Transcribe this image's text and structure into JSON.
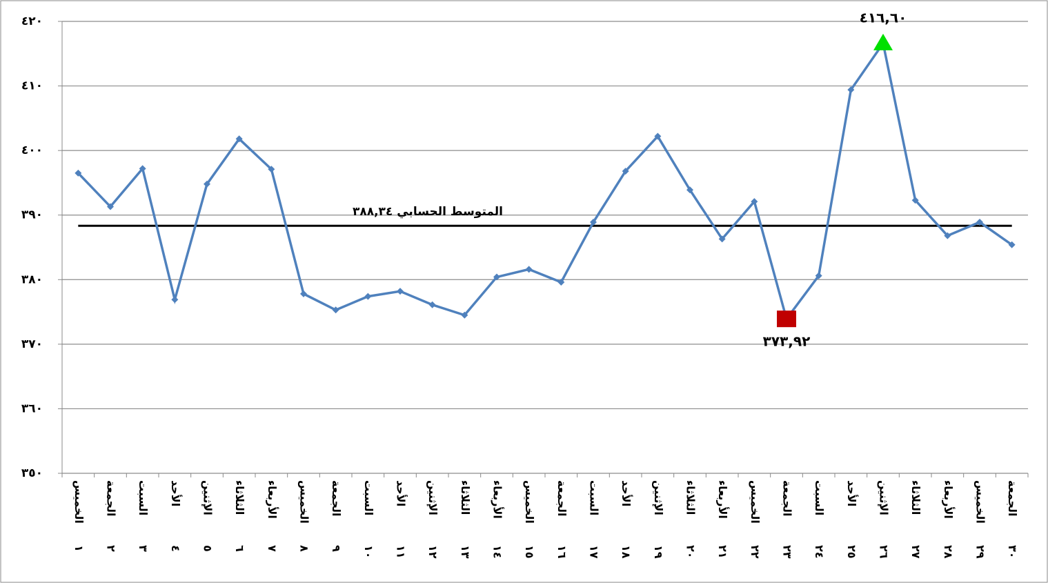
{
  "chart_data": {
    "type": "line",
    "categories": [
      "الخميس",
      "الجمعة",
      "السبت",
      "الأحد",
      "الإثنين",
      "الثلاثاء",
      "الأربعاء",
      "الخميس",
      "الجمعة",
      "السبت",
      "الأحد",
      "الإثنين",
      "الثلاثاء",
      "الأربعاء",
      "الخميس",
      "الجمعة",
      "السبت",
      "الأحد",
      "الإثنين",
      "الثلاثاء",
      "الأربعاء",
      "الخميس",
      "الجمعة",
      "السبت",
      "الأحد",
      "الإثنين",
      "الثلاثاء",
      "الأربعاء",
      "الخميس",
      "الجمعة"
    ],
    "category_numbers": [
      "١",
      "٢",
      "٣",
      "٤",
      "٥",
      "٦",
      "٧",
      "٨",
      "٩",
      "١٠",
      "١١",
      "١٢",
      "١٣",
      "١٤",
      "١٥",
      "١٦",
      "١٧",
      "١٨",
      "١٩",
      "٢٠",
      "٢١",
      "٢٢",
      "٢٣",
      "٢٤",
      "٢٥",
      "٢٦",
      "٢٧",
      "٢٨",
      "٢٩",
      "٣٠"
    ],
    "series": [
      {
        "color": "#4f81bd",
        "values": [
          396.5,
          391.3,
          397.2,
          376.9,
          394.8,
          401.8,
          397.1,
          377.8,
          375.3,
          377.4,
          378.2,
          376.1,
          374.5,
          380.4,
          381.6,
          379.6,
          388.9,
          396.8,
          402.2,
          393.9,
          386.3,
          392.1,
          373.92,
          380.6,
          409.4,
          416.6,
          392.3,
          386.8,
          388.9,
          385.4
        ],
        "value_labels": [
          null,
          null,
          null,
          null,
          null,
          null,
          null,
          null,
          null,
          null,
          null,
          null,
          null,
          null,
          null,
          null,
          null,
          null,
          null,
          null,
          null,
          null,
          "٣٧٣,٩٢",
          null,
          null,
          "٤١٦,٦٠",
          null,
          null,
          null,
          null
        ]
      }
    ],
    "highlights": [
      {
        "index": 22,
        "shape": "square",
        "color": "#c00000"
      },
      {
        "index": 25,
        "shape": "triangle",
        "color": "#00e000"
      }
    ],
    "mean": {
      "value": 388.34,
      "label": "المتوسط الحسابي  ٣٨٨,٣٤",
      "color": "#000000"
    },
    "ylim": [
      350,
      420
    ],
    "yticks": [
      {
        "value": 350,
        "label": "٣٥٠"
      },
      {
        "value": 360,
        "label": "٣٦٠"
      },
      {
        "value": 370,
        "label": "٣٧٠"
      },
      {
        "value": 380,
        "label": "٣٨٠"
      },
      {
        "value": 390,
        "label": "٣٩٠"
      },
      {
        "value": 400,
        "label": "٤٠٠"
      },
      {
        "value": 410,
        "label": "٤١٠"
      },
      {
        "value": 420,
        "label": "٤٢٠"
      }
    ],
    "grid": true
  }
}
